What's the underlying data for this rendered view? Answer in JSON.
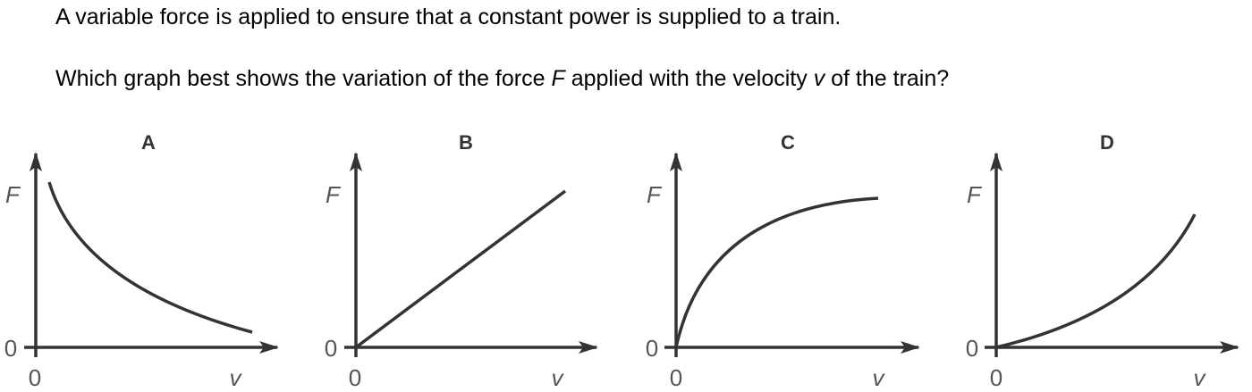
{
  "question": {
    "line1": "A variable force is applied to ensure that a constant power is supplied to a train.",
    "line2_before_F": "Which graph best shows the variation of the force ",
    "line2_F": "F",
    "line2_middle": " applied with the velocity ",
    "line2_v": "v",
    "line2_after_v": " of the train?"
  },
  "graphs": [
    {
      "label": "A",
      "y_axis_label": "F",
      "x_axis_label": "v",
      "y_origin_label": "0",
      "x_origin_label": "0",
      "curve_shape": "inverse-decreasing"
    },
    {
      "label": "B",
      "y_axis_label": "F",
      "x_axis_label": "v",
      "y_origin_label": "0",
      "x_origin_label": "0",
      "curve_shape": "straight-line-through-origin"
    },
    {
      "label": "C",
      "y_axis_label": "F",
      "x_axis_label": "v",
      "y_origin_label": "0",
      "x_origin_label": "0",
      "curve_shape": "increasing-concave-down"
    },
    {
      "label": "D",
      "y_axis_label": "F",
      "x_axis_label": "v",
      "y_origin_label": "0",
      "x_origin_label": "0",
      "curve_shape": "increasing-concave-up"
    }
  ],
  "colors": {
    "line": "#333333",
    "text": "#000000",
    "axis_label": "#555555"
  }
}
